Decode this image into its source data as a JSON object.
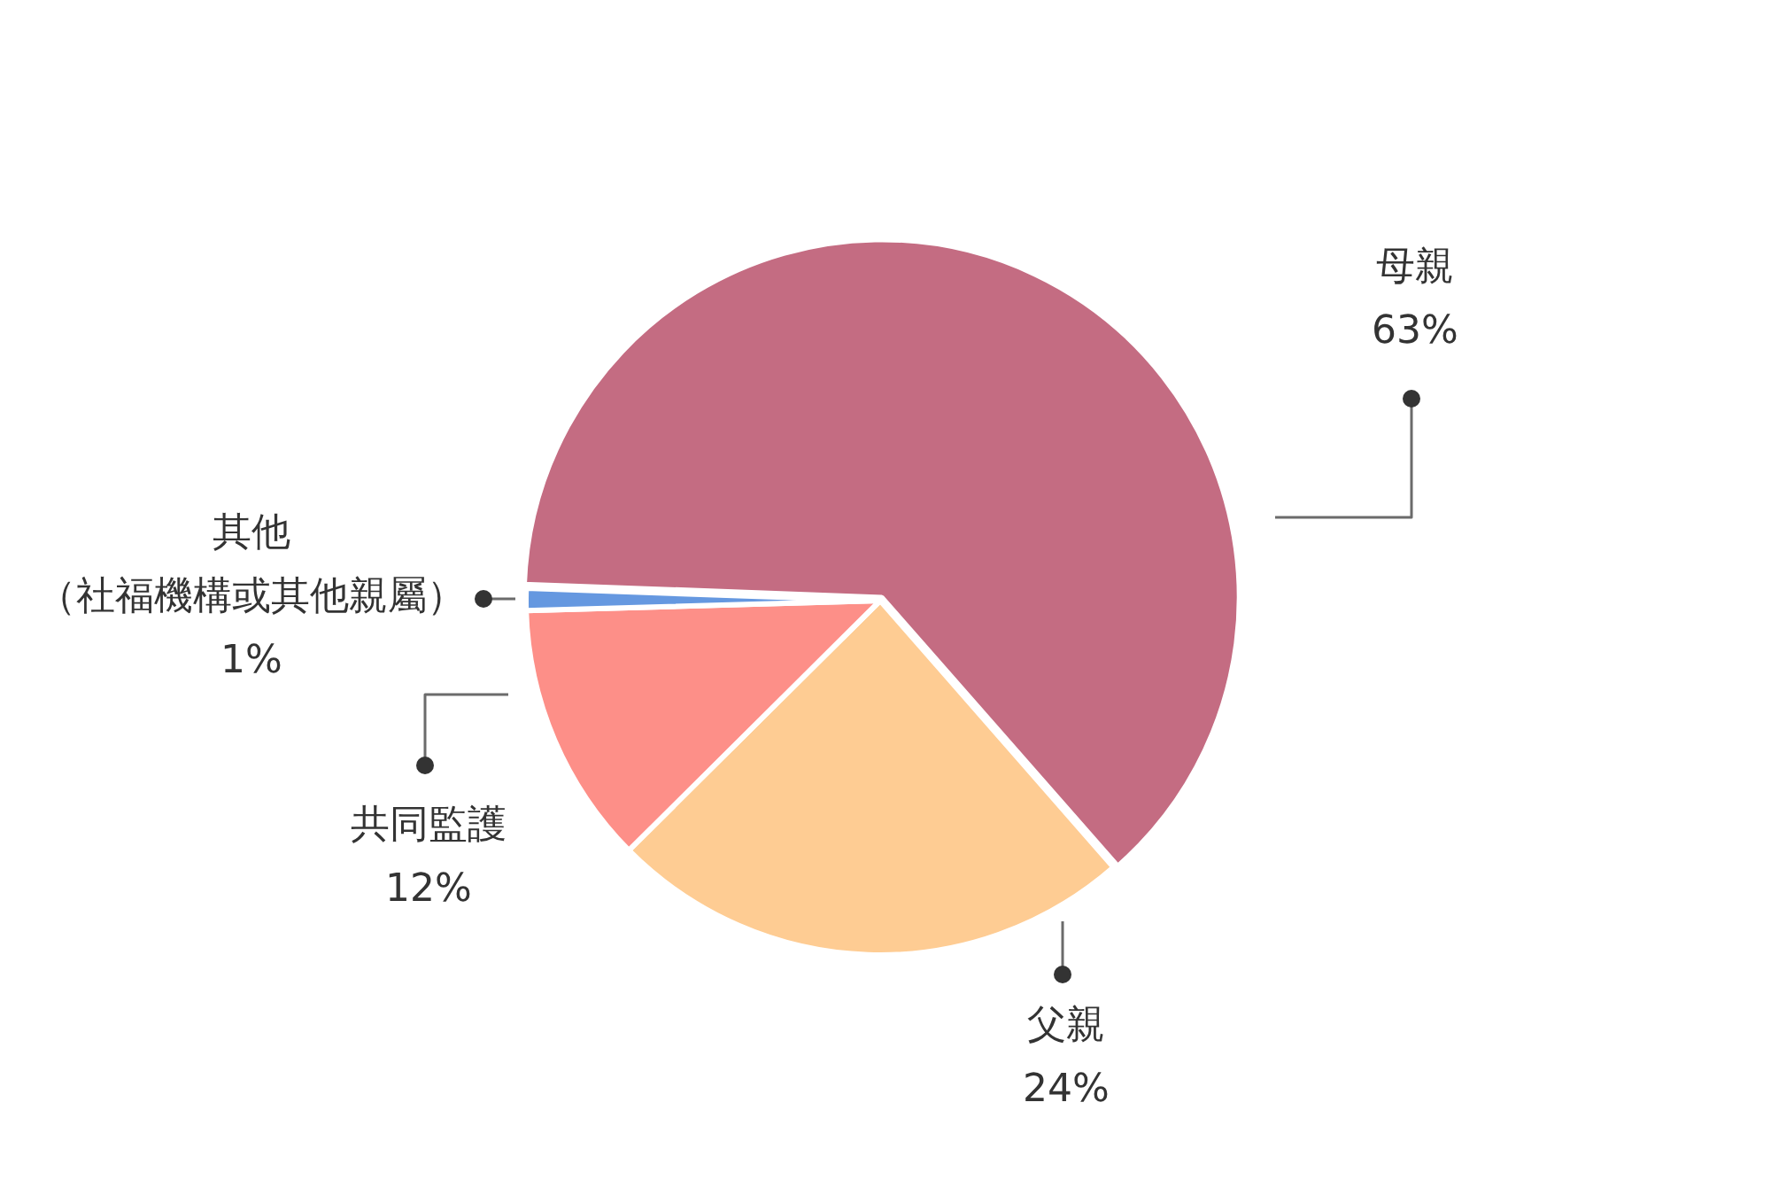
{
  "chart_data": {
    "type": "pie",
    "categories": [
      "母親",
      "父親",
      "共同監護",
      "其他（社福機構或其他親屬）"
    ],
    "values": [
      63,
      24,
      12,
      1
    ],
    "value_labels": [
      "63%",
      "24%",
      "12%",
      "1%"
    ],
    "colors": [
      "#c46c82",
      "#fecc93",
      "#fd8f88",
      "#6598e0"
    ],
    "legend": false
  }
}
